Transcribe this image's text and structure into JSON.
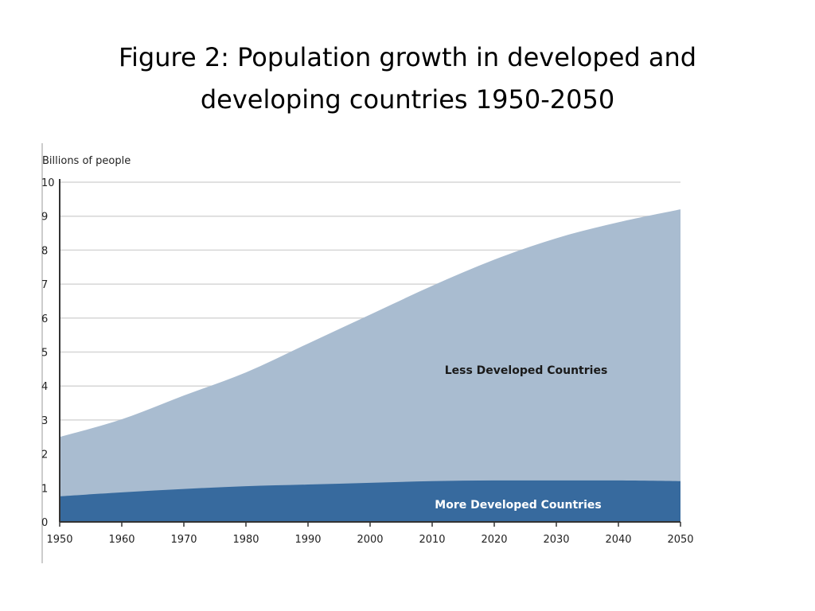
{
  "slide": {
    "title_line1": "Figure 2: Population growth in developed and",
    "title_line2": "developing countries 1950-2050"
  },
  "chart_data": {
    "type": "area",
    "stacked": true,
    "y_unit_label": "Billions of people",
    "x": [
      1950,
      1960,
      1970,
      1980,
      1990,
      2000,
      2010,
      2020,
      2030,
      2040,
      2050
    ],
    "x_ticks": [
      "1950",
      "1960",
      "1970",
      "1980",
      "1990",
      "2000",
      "2010",
      "2020",
      "2030",
      "2040",
      "2050"
    ],
    "y_ticks": [
      "0",
      "1",
      "2",
      "3",
      "4",
      "5",
      "6",
      "7",
      "8",
      "9",
      "10"
    ],
    "xlim": [
      1950,
      2050
    ],
    "ylim": [
      0,
      10
    ],
    "grid": true,
    "series": [
      {
        "name": "More Developed Countries",
        "values": [
          0.75,
          0.87,
          0.97,
          1.05,
          1.1,
          1.15,
          1.2,
          1.22,
          1.22,
          1.22,
          1.2
        ],
        "color": "#376A9E",
        "label_color": "#ffffff"
      },
      {
        "name": "Less Developed Countries",
        "values": [
          1.75,
          2.15,
          2.75,
          3.35,
          4.15,
          4.95,
          5.75,
          6.5,
          7.13,
          7.6,
          8.0
        ],
        "color": "#A9BCD0",
        "label_color": "#1a1a1a"
      }
    ],
    "colors": {
      "grid": "#D6D6D6",
      "axis": "#333333",
      "frame": "#999999",
      "baseline_band": "#2F5F8E"
    }
  }
}
